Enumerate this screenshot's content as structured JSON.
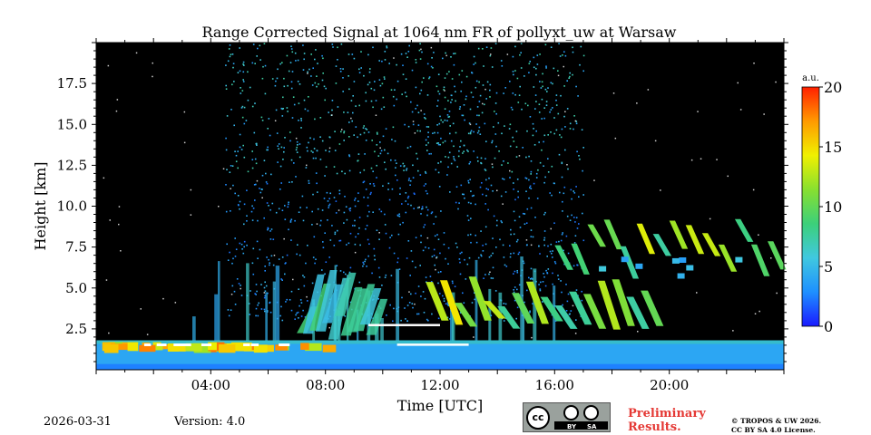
{
  "chart_data": {
    "type": "heatmap",
    "title": "Range Corrected Signal at 1064 nm FR of pollyxt_uw at Warsaw",
    "xlabel": "Time [UTC]",
    "ylabel": "Height [km]",
    "xlim_hours": [
      0,
      24
    ],
    "ylim_km": [
      0,
      20
    ],
    "x_ticks": [
      {
        "value": 4,
        "label": "04:00"
      },
      {
        "value": 8,
        "label": "08:00"
      },
      {
        "value": 12,
        "label": "12:00"
      },
      {
        "value": 16,
        "label": "16:00"
      },
      {
        "value": 20,
        "label": "20:00"
      }
    ],
    "y_ticks": [
      {
        "value": 2.5,
        "label": "2.5"
      },
      {
        "value": 5.0,
        "label": "5.0"
      },
      {
        "value": 7.5,
        "label": "7.5"
      },
      {
        "value": 10.0,
        "label": "10.0"
      },
      {
        "value": 12.5,
        "label": "12.5"
      },
      {
        "value": 15.0,
        "label": "15.0"
      },
      {
        "value": 17.5,
        "label": "17.5"
      }
    ],
    "colorbar": {
      "label": "a.u.",
      "range": [
        0,
        20
      ],
      "ticks": [
        {
          "value": 0,
          "label": "0"
        },
        {
          "value": 5,
          "label": "5"
        },
        {
          "value": 10,
          "label": "10"
        },
        {
          "value": 15,
          "label": "15"
        },
        {
          "value": 20,
          "label": "20"
        }
      ],
      "colormap": [
        "#1a1aff",
        "#1e90ff",
        "#40c8e0",
        "#3cd07a",
        "#88e030",
        "#f0f000",
        "#ff9a00",
        "#ff2000"
      ]
    },
    "features": [
      {
        "name": "boundary layer",
        "t_start": 0,
        "t_end": 24,
        "top_km": 1.8,
        "value": 4
      },
      {
        "name": "bright layer top",
        "t_start": 0,
        "t_end": 8,
        "height_km": 1.6,
        "value": 18
      },
      {
        "name": "aerosol plume",
        "t_start": 7,
        "t_end": 10,
        "height_km": 3.5,
        "value": 9
      },
      {
        "name": "cloud streaks",
        "t_start": 11.5,
        "t_end": 19.5,
        "height_km": 3.5,
        "value": 15
      },
      {
        "name": "upper cloud streaks",
        "t_start": 16,
        "t_end": 24,
        "height_km": 7.5,
        "value": 14
      },
      {
        "name": "high noise",
        "t_start": 4.5,
        "t_end": 17,
        "height_km": 14,
        "value": 7
      }
    ]
  },
  "footer": {
    "date": "2026-03-31",
    "version": "Version: 4.0",
    "license_badge": {
      "cc": "cc",
      "by": "BY",
      "sa": "SA"
    },
    "preliminary_line1": "Preliminary",
    "preliminary_line2": "Results.",
    "copyright_line1": "© TROPOS & UW 2026.",
    "copyright_line2": "CC BY SA 4.0 License."
  },
  "colors": {
    "background": "#000000",
    "preliminary": "#e53935"
  }
}
